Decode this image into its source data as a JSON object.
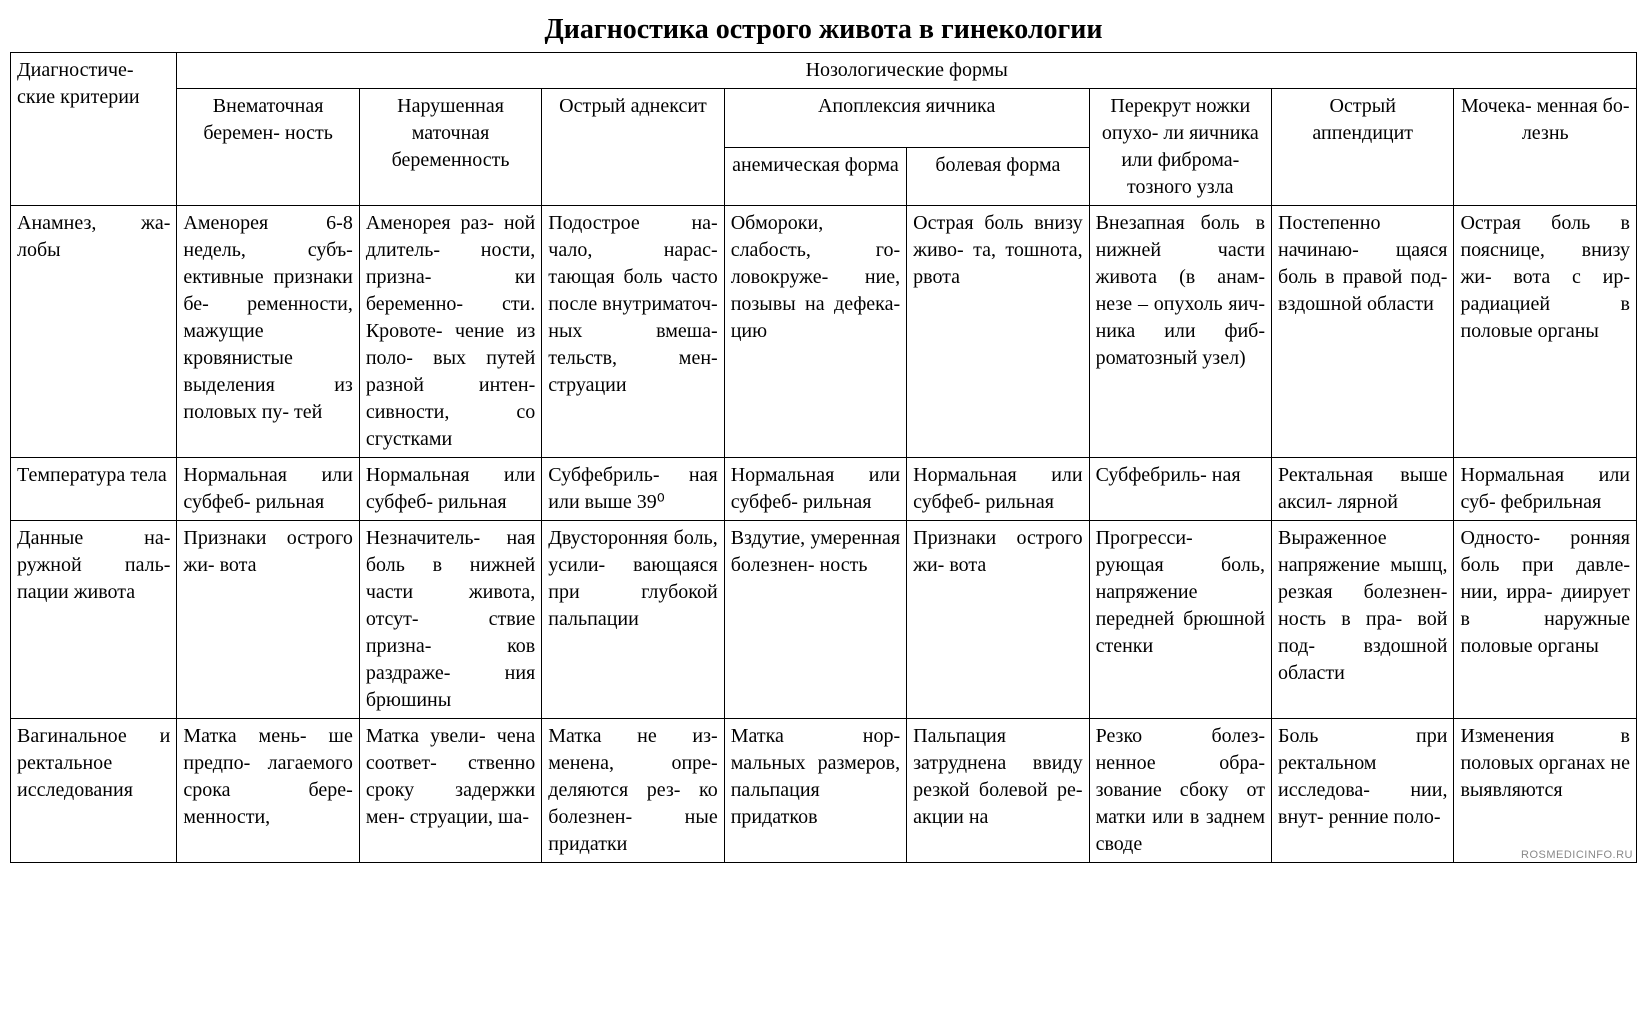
{
  "title": "Диагностика острого живота в гинекологии",
  "watermark": "ROSMEDICINFO.RU",
  "header": {
    "criteria": "Диагностиче-\nские критерии",
    "noso_group": "Нозологические формы",
    "apoplexy_group": "Апоплексия яичника",
    "cols": {
      "c1": "Внематочная беремен-\nность",
      "c2": "Нарушенная маточная беременность",
      "c3": "Острый аднексит",
      "c4": "анемическая форма",
      "c5": "болевая форма",
      "c6": "Перекрут ножки опухо-\nли яичника или фиброма-\nтозного узла",
      "c7": "Острый аппендицит",
      "c8": "Мочека-\nменная бо-\nлезнь"
    }
  },
  "rows": [
    {
      "label": "Анамнез, жа-\nлобы",
      "c1": "Аменорея 6-8 недель, субъ-\nективные признаки бе-\nременности, мажущие кровянистые выделения из половых пу-\nтей",
      "c2": "Аменорея раз-\nной длитель-\nности, призна-\nки беременно-\nсти. Кровоте-\nчение из поло-\nвых путей разной интен-\nсивности, со сгустками",
      "c3": "Подострое на-\nчало, нарас-\nтающая боль часто после внутриматоч-\nных вмеша-\nтельств, мен-\nструации",
      "c4": "Обмороки, слабость, го-\nловокруже-\nние, позывы на дефека-\nцию",
      "c5": "Острая боль внизу живо-\nта, тошнота, рвота",
      "c6": "Внезапная боль в нижней части живота (в анам-незе – опухоль яич-\nника или фиб-\nроматозный узел)",
      "c7": "Постепенно начинаю-\nщаяся боль в правой под-\nвздошной области",
      "c8": "Острая боль в пояснице, внизу жи-\nвота с ир-\nрадиацией в половые органы"
    },
    {
      "label": "Температура тела",
      "c1": "Нормальная или субфеб-\nрильная",
      "c2": "Нормальная или субфеб-\nрильная",
      "c3": "Субфебриль-\nная или выше 39⁰",
      "c4": "Нормальная или субфеб-\nрильная",
      "c5": "Нормальная или субфеб-\nрильная",
      "c6": "Субфебриль-\nная",
      "c7": "Ректальная выше аксил-\nлярной",
      "c8": "Нормальная или суб-\nфебрильная"
    },
    {
      "label": "Данные на-\nружной паль-\nпации живота",
      "c1": "Признаки острого жи-\nвота",
      "c2": "Незначитель-\nная боль в нижней части живота, отсут-\nствие призна-\nков раздраже-\nния брюшины",
      "c3": "Двусторонняя боль, усили-\nвающаяся при глубокой пальпации",
      "c4": "Вздутие, умеренная болезнен-\nность",
      "c5": "Признаки острого жи-\nвота",
      "c6": "Прогресси-\nрующая боль, напряжение передней брюшной стенки",
      "c7": "Выраженное напряжение мышц, резкая болезнен-\nность в пра-\nвой под-\nвздошной области",
      "c8": "Односто-\nронняя боль при давле-\nнии, ирра-\nдиирует в наружные половые органы"
    },
    {
      "label": "Вагинальное и ректальное исследования",
      "c1": "Матка мень-\nше предпо-\nлагаемого срока бере-\nменности,",
      "c2": "Матка увели-\nчена соответ-\nственно сроку задержки мен-\nструации, ша-",
      "c3": "Матка не из-\nменена, опре-\nделяются рез-\nко болезнен-\nные придатки",
      "c4": "Матка нор-\nмальных размеров, пальпация придатков",
      "c5": "Пальпация затруднена ввиду резкой болевой ре-\nакции на",
      "c6": "Резко болез-\nненное обра-\nзование сбоку от матки или в заднем своде",
      "c7": "Боль при ректальном исследова-\nнии, внут-\nренние поло-",
      "c8": "Изменения в половых органах не выявляются"
    }
  ],
  "style": {
    "font_family": "Times New Roman",
    "title_fontsize": 28,
    "cell_fontsize": 20,
    "border_color": "#000000",
    "background": "#ffffff",
    "text_color": "#000000",
    "watermark_color": "#888888"
  }
}
